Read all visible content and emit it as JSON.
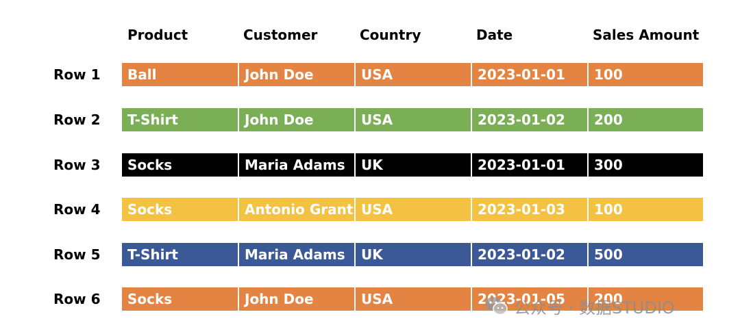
{
  "headers": [
    "Product",
    "Customer",
    "Country",
    "Date",
    "Sales Amount"
  ],
  "rows": [
    {
      "label": "Row 1",
      "color": "#E38443",
      "cells": [
        "Ball",
        "John Doe",
        "USA",
        "2023-01-01",
        "100"
      ]
    },
    {
      "label": "Row 2",
      "color": "#7BAF56",
      "cells": [
        "T-Shirt",
        "John Doe",
        "USA",
        "2023-01-02",
        "200"
      ]
    },
    {
      "label": "Row 3",
      "color": "#000000",
      "cells": [
        "Socks",
        "Maria Adams",
        "UK",
        "2023-01-01",
        "300"
      ]
    },
    {
      "label": "Row 4",
      "color": "#F4C242",
      "cells": [
        "Socks",
        "Antonio Grant",
        "USA",
        "2023-01-03",
        "100"
      ]
    },
    {
      "label": "Row 5",
      "color": "#3B5997",
      "cells": [
        "T-Shirt",
        "Maria Adams",
        "UK",
        "2023-01-02",
        "500"
      ]
    },
    {
      "label": "Row 6",
      "color": "#E38443",
      "cells": [
        "Socks",
        "John Doe",
        "USA",
        "2023-01-05",
        "200"
      ]
    }
  ],
  "watermark": {
    "text": "公众号 · 数据STUDIO",
    "icon": "wechat-icon"
  }
}
